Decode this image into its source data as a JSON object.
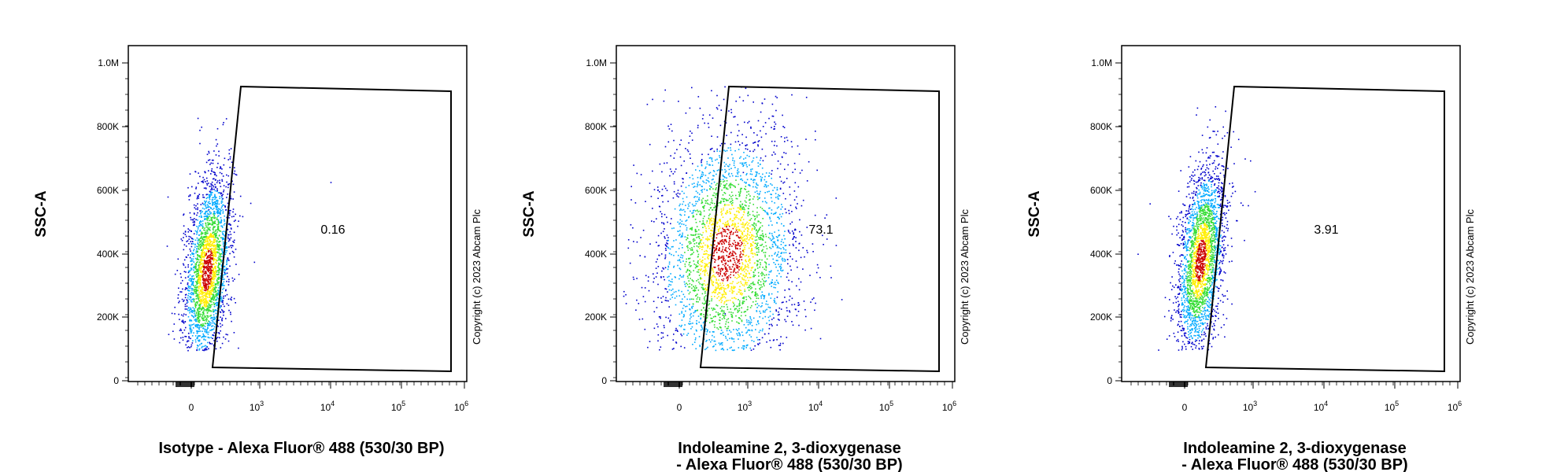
{
  "chart_data": [
    {
      "type": "scatter",
      "plot": "flow cytometry density dot plot",
      "xlabel": "Isotype - Alexa Fluor® 488 (530/30 BP)",
      "ylabel": "SSC-A",
      "x_scale": "biexponential",
      "x_ticks": [
        "0",
        "10",
        "10",
        "10",
        "10"
      ],
      "x_tick_exponents": [
        "",
        "3",
        "4",
        "5",
        "6"
      ],
      "y_ticks": [
        "0",
        "200K",
        "400K",
        "600K",
        "800K",
        "1.0M"
      ],
      "ylim": [
        0,
        1000000
      ],
      "gate_value": "0.16",
      "copyright": "Copyright (c) 2023 Abcam Plc",
      "population": {
        "spread": "tight",
        "x_center_fraction": 0.2,
        "y_center": 350000
      }
    },
    {
      "type": "scatter",
      "plot": "flow cytometry density dot plot",
      "xlabel_lines": [
        "Indoleamine 2, 3-dioxygenase",
        "- Alexa Fluor® 488 (530/30 BP)"
      ],
      "ylabel": "SSC-A",
      "x_scale": "biexponential",
      "x_ticks": [
        "0",
        "10",
        "10",
        "10",
        "10"
      ],
      "x_tick_exponents": [
        "",
        "3",
        "4",
        "5",
        "6"
      ],
      "y_ticks": [
        "0",
        "200K",
        "400K",
        "600K",
        "800K",
        "1.0M"
      ],
      "ylim": [
        0,
        1000000
      ],
      "gate_value": "73.1",
      "copyright": "Copyright (c) 2023 Abcam Plc",
      "population": {
        "spread": "wide",
        "x_center_fraction": 0.3,
        "y_center": 400000
      }
    },
    {
      "type": "scatter",
      "plot": "flow cytometry density dot plot",
      "xlabel_lines": [
        "Indoleamine 2, 3-dioxygenase",
        "- Alexa Fluor® 488 (530/30 BP)"
      ],
      "ylabel": "SSC-A",
      "x_scale": "biexponential",
      "x_ticks": [
        "0",
        "10",
        "10",
        "10",
        "10"
      ],
      "x_tick_exponents": [
        "",
        "3",
        "4",
        "5",
        "6"
      ],
      "y_ticks": [
        "0",
        "200K",
        "400K",
        "600K",
        "800K",
        "1.0M"
      ],
      "ylim": [
        0,
        1000000
      ],
      "gate_value": "3.91",
      "copyright": "Copyright (c) 2023 Abcam Plc",
      "population": {
        "spread": "tight",
        "x_center_fraction": 0.22,
        "y_center": 380000
      }
    }
  ],
  "colors": {
    "density_low": "#0000cc",
    "density_mid_low": "#00aaff",
    "density_mid": "#33dd33",
    "density_mid_high": "#ffee00",
    "density_high": "#cc0000",
    "frame": "#000000"
  }
}
